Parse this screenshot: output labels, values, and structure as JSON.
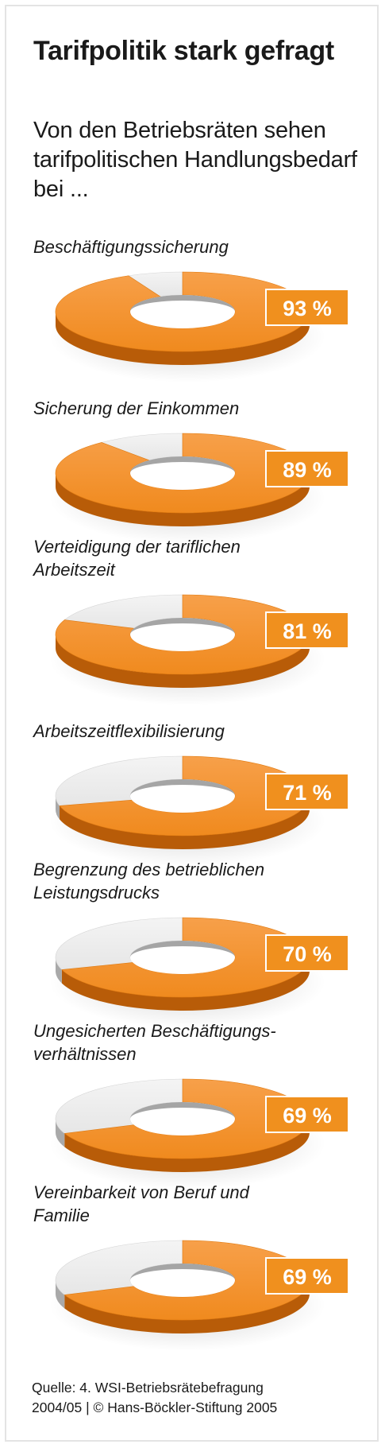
{
  "header": {
    "title": "Tarifpolitik stark gefragt",
    "subtitle": "Von den Betriebsräten sehen tarifpolitischen Handlungsbedarf bei ..."
  },
  "chart_data": {
    "type": "pie",
    "title": "Tarifpolitik stark gefragt",
    "subtitle": "Von den Betriebsräten sehen tarifpolitischen Handlungsbedarf bei ...",
    "unit": "%",
    "items": [
      {
        "label_lines": [
          "Beschäftigungssicherung"
        ],
        "value": 93,
        "value_label": "93 %"
      },
      {
        "label_lines": [
          "Sicherung der Einkommen"
        ],
        "value": 89,
        "value_label": "89 %"
      },
      {
        "label_lines": [
          "Verteidigung der tariflichen",
          "Arbeitszeit"
        ],
        "value": 81,
        "value_label": "81 %"
      },
      {
        "label_lines": [
          "Arbeitszeitflexibilisierung"
        ],
        "value": 71,
        "value_label": "71 %"
      },
      {
        "label_lines": [
          "Begrenzung des betrieblichen",
          "Leistungsdrucks"
        ],
        "value": 70,
        "value_label": "70 %"
      },
      {
        "label_lines": [
          "Ungesicherten Beschäftigungs-",
          "verhältnissen"
        ],
        "value": 69,
        "value_label": "69 %"
      },
      {
        "label_lines": [
          "Vereinbarkeit von Beruf und",
          "Familie"
        ],
        "value": 69,
        "value_label": "69 %"
      }
    ]
  },
  "colors": {
    "orange": "#f08a1e",
    "orange_dark": "#b85c08",
    "grey": "#e6e6e6",
    "grey_dark": "#a9a9a9",
    "badge_bg": "#f0901e",
    "badge_text": "#ffffff"
  },
  "footer": {
    "source_line1": "Quelle: 4. WSI-Betriebsrätebefragung",
    "source_line2": "2004/05 | © Hans-Böckler-Stiftung 2005"
  }
}
